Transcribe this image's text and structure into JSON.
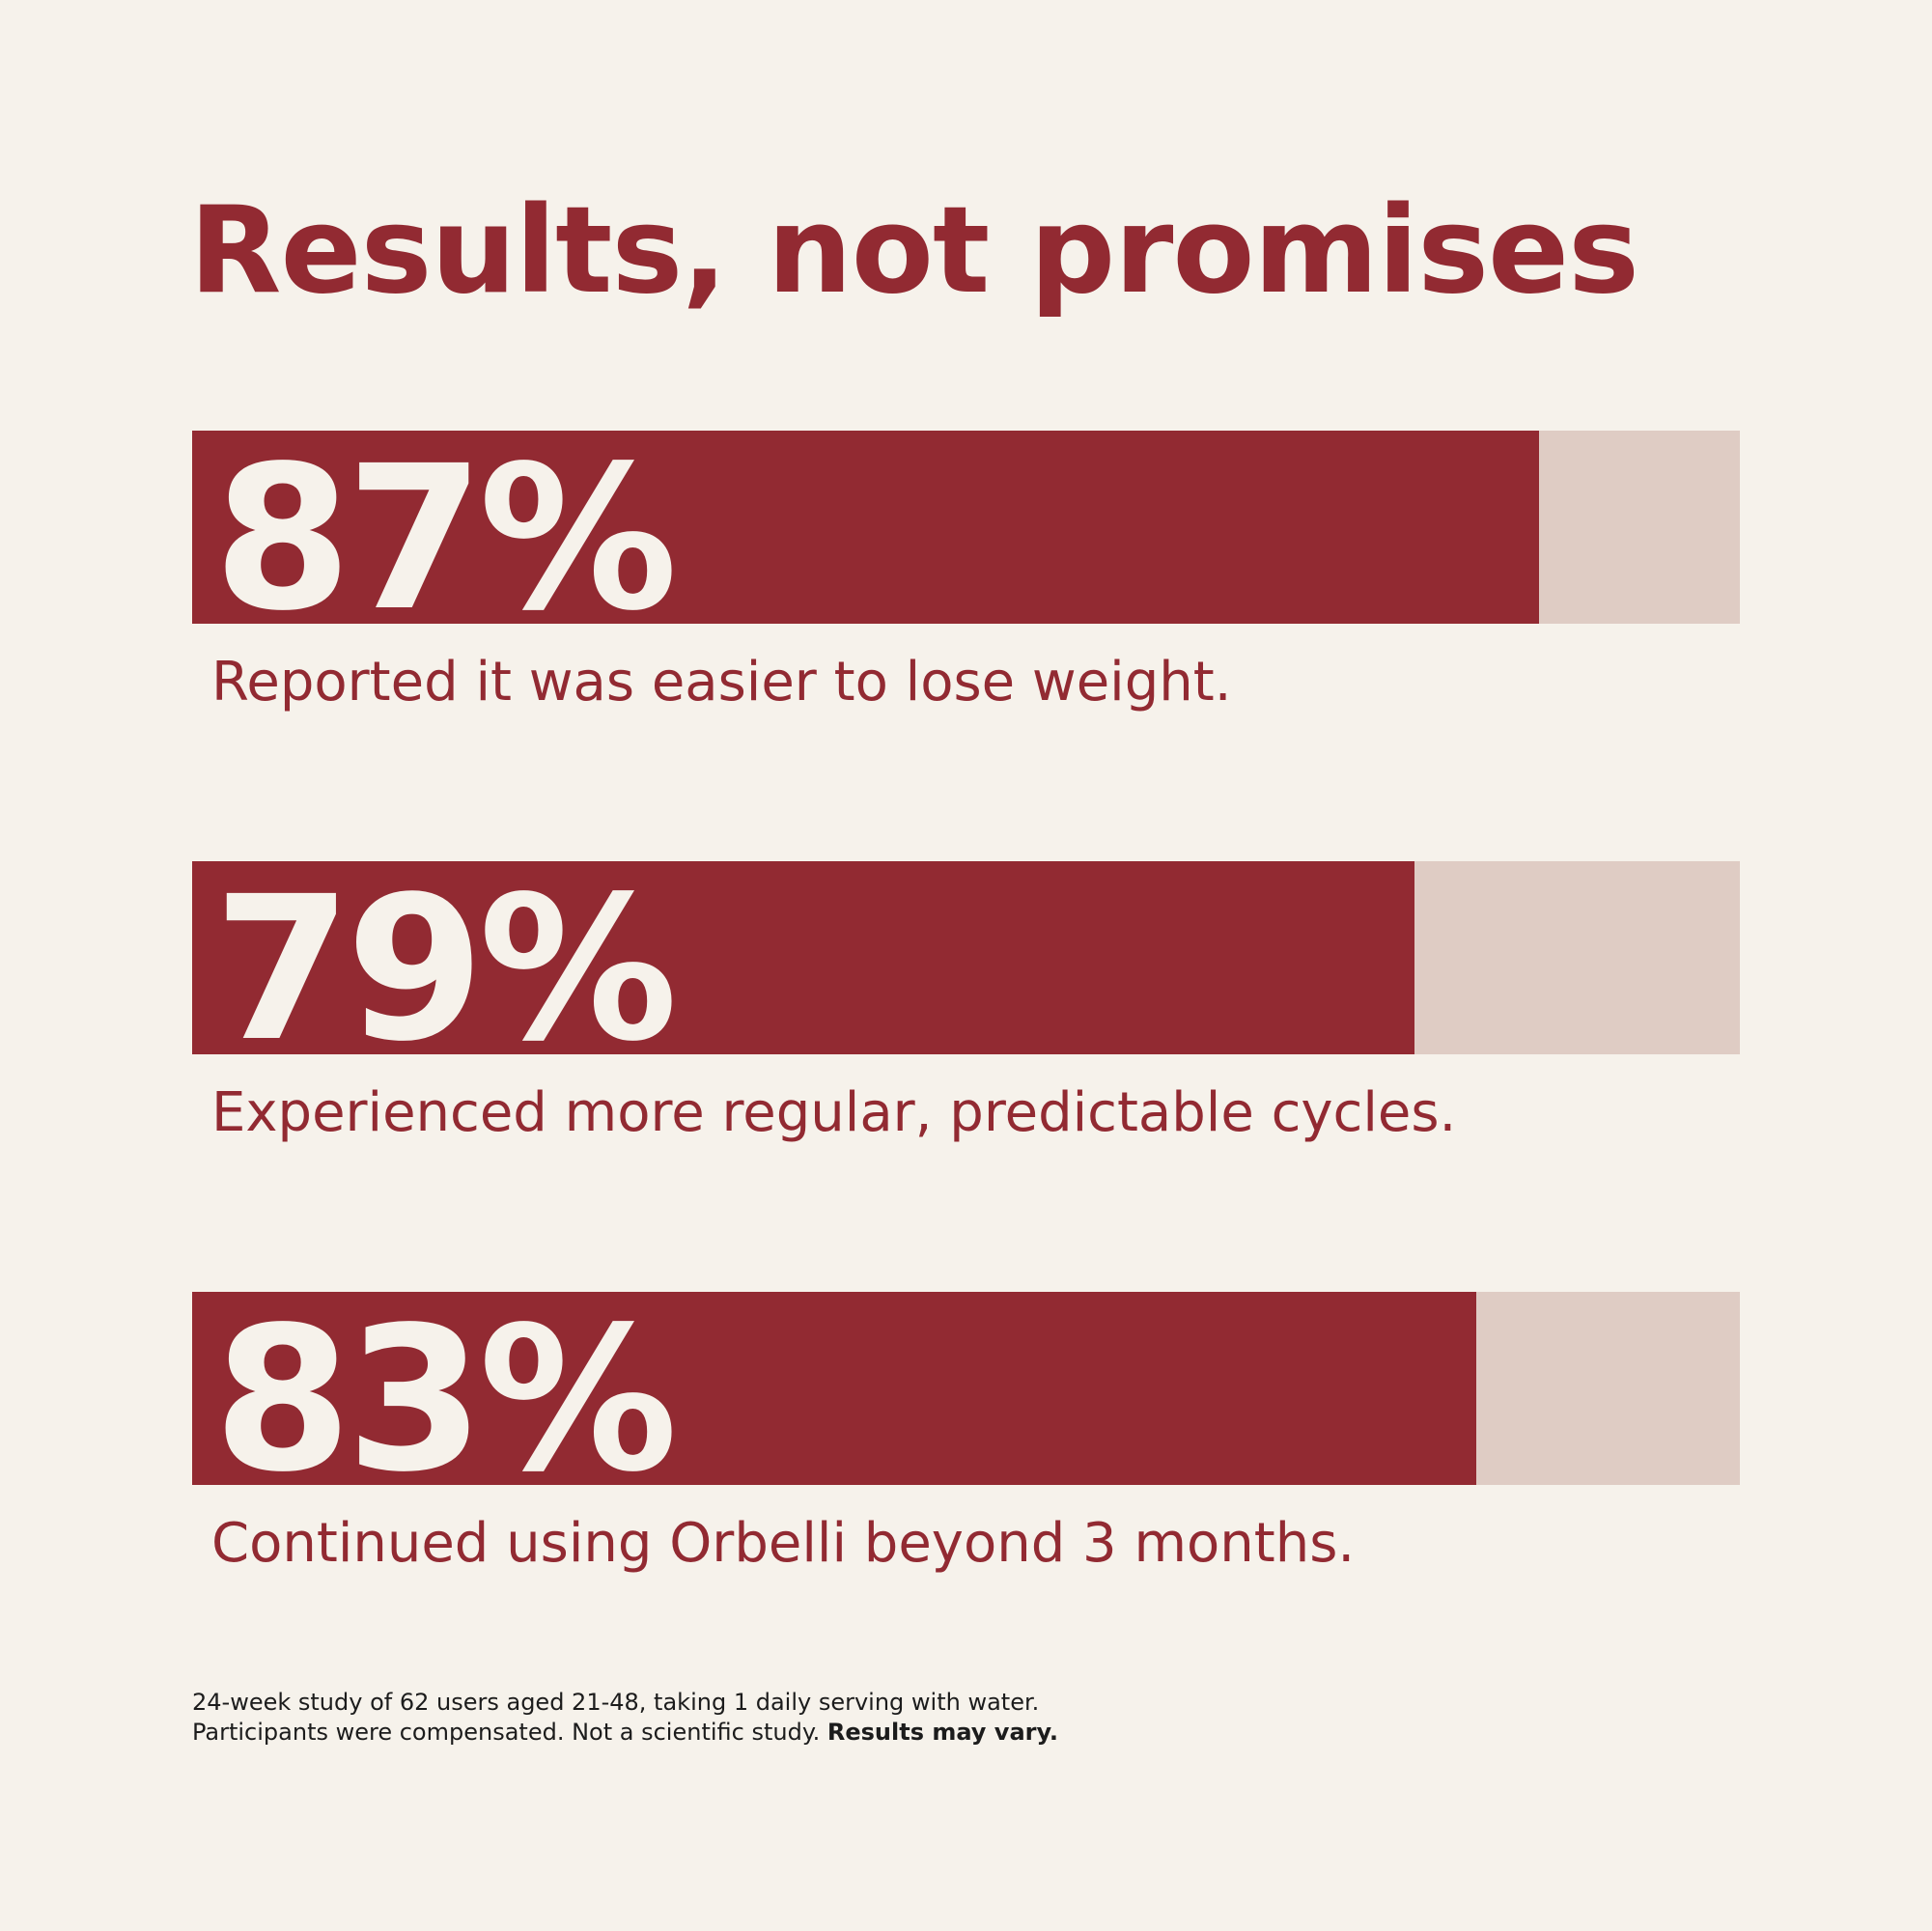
{
  "colors": {
    "background": "#f6f2eb",
    "accent": "#922a32",
    "track": "#dfccc4",
    "bar_text": "#f6f2eb",
    "footnote": "#1c1c1c"
  },
  "title": "Results, not promises",
  "chart_data": {
    "type": "bar",
    "orientation": "horizontal",
    "xlim": [
      0,
      100
    ],
    "categories": [
      "Reported it was easier to lose weight.",
      "Experienced more regular, predictable cycles.",
      "Continued using Orbelli beyond 3 months."
    ],
    "values": [
      87,
      79,
      83
    ],
    "labels": [
      "87%",
      "79%",
      "83%"
    ],
    "grid": false,
    "legend": "none"
  },
  "footnote": {
    "line1": "24-week study of 62 users aged 21-48, taking 1 daily serving with water.",
    "line2_regular": "Participants were compensated. Not a scientific study.",
    "line2_bold": "Results may vary."
  }
}
